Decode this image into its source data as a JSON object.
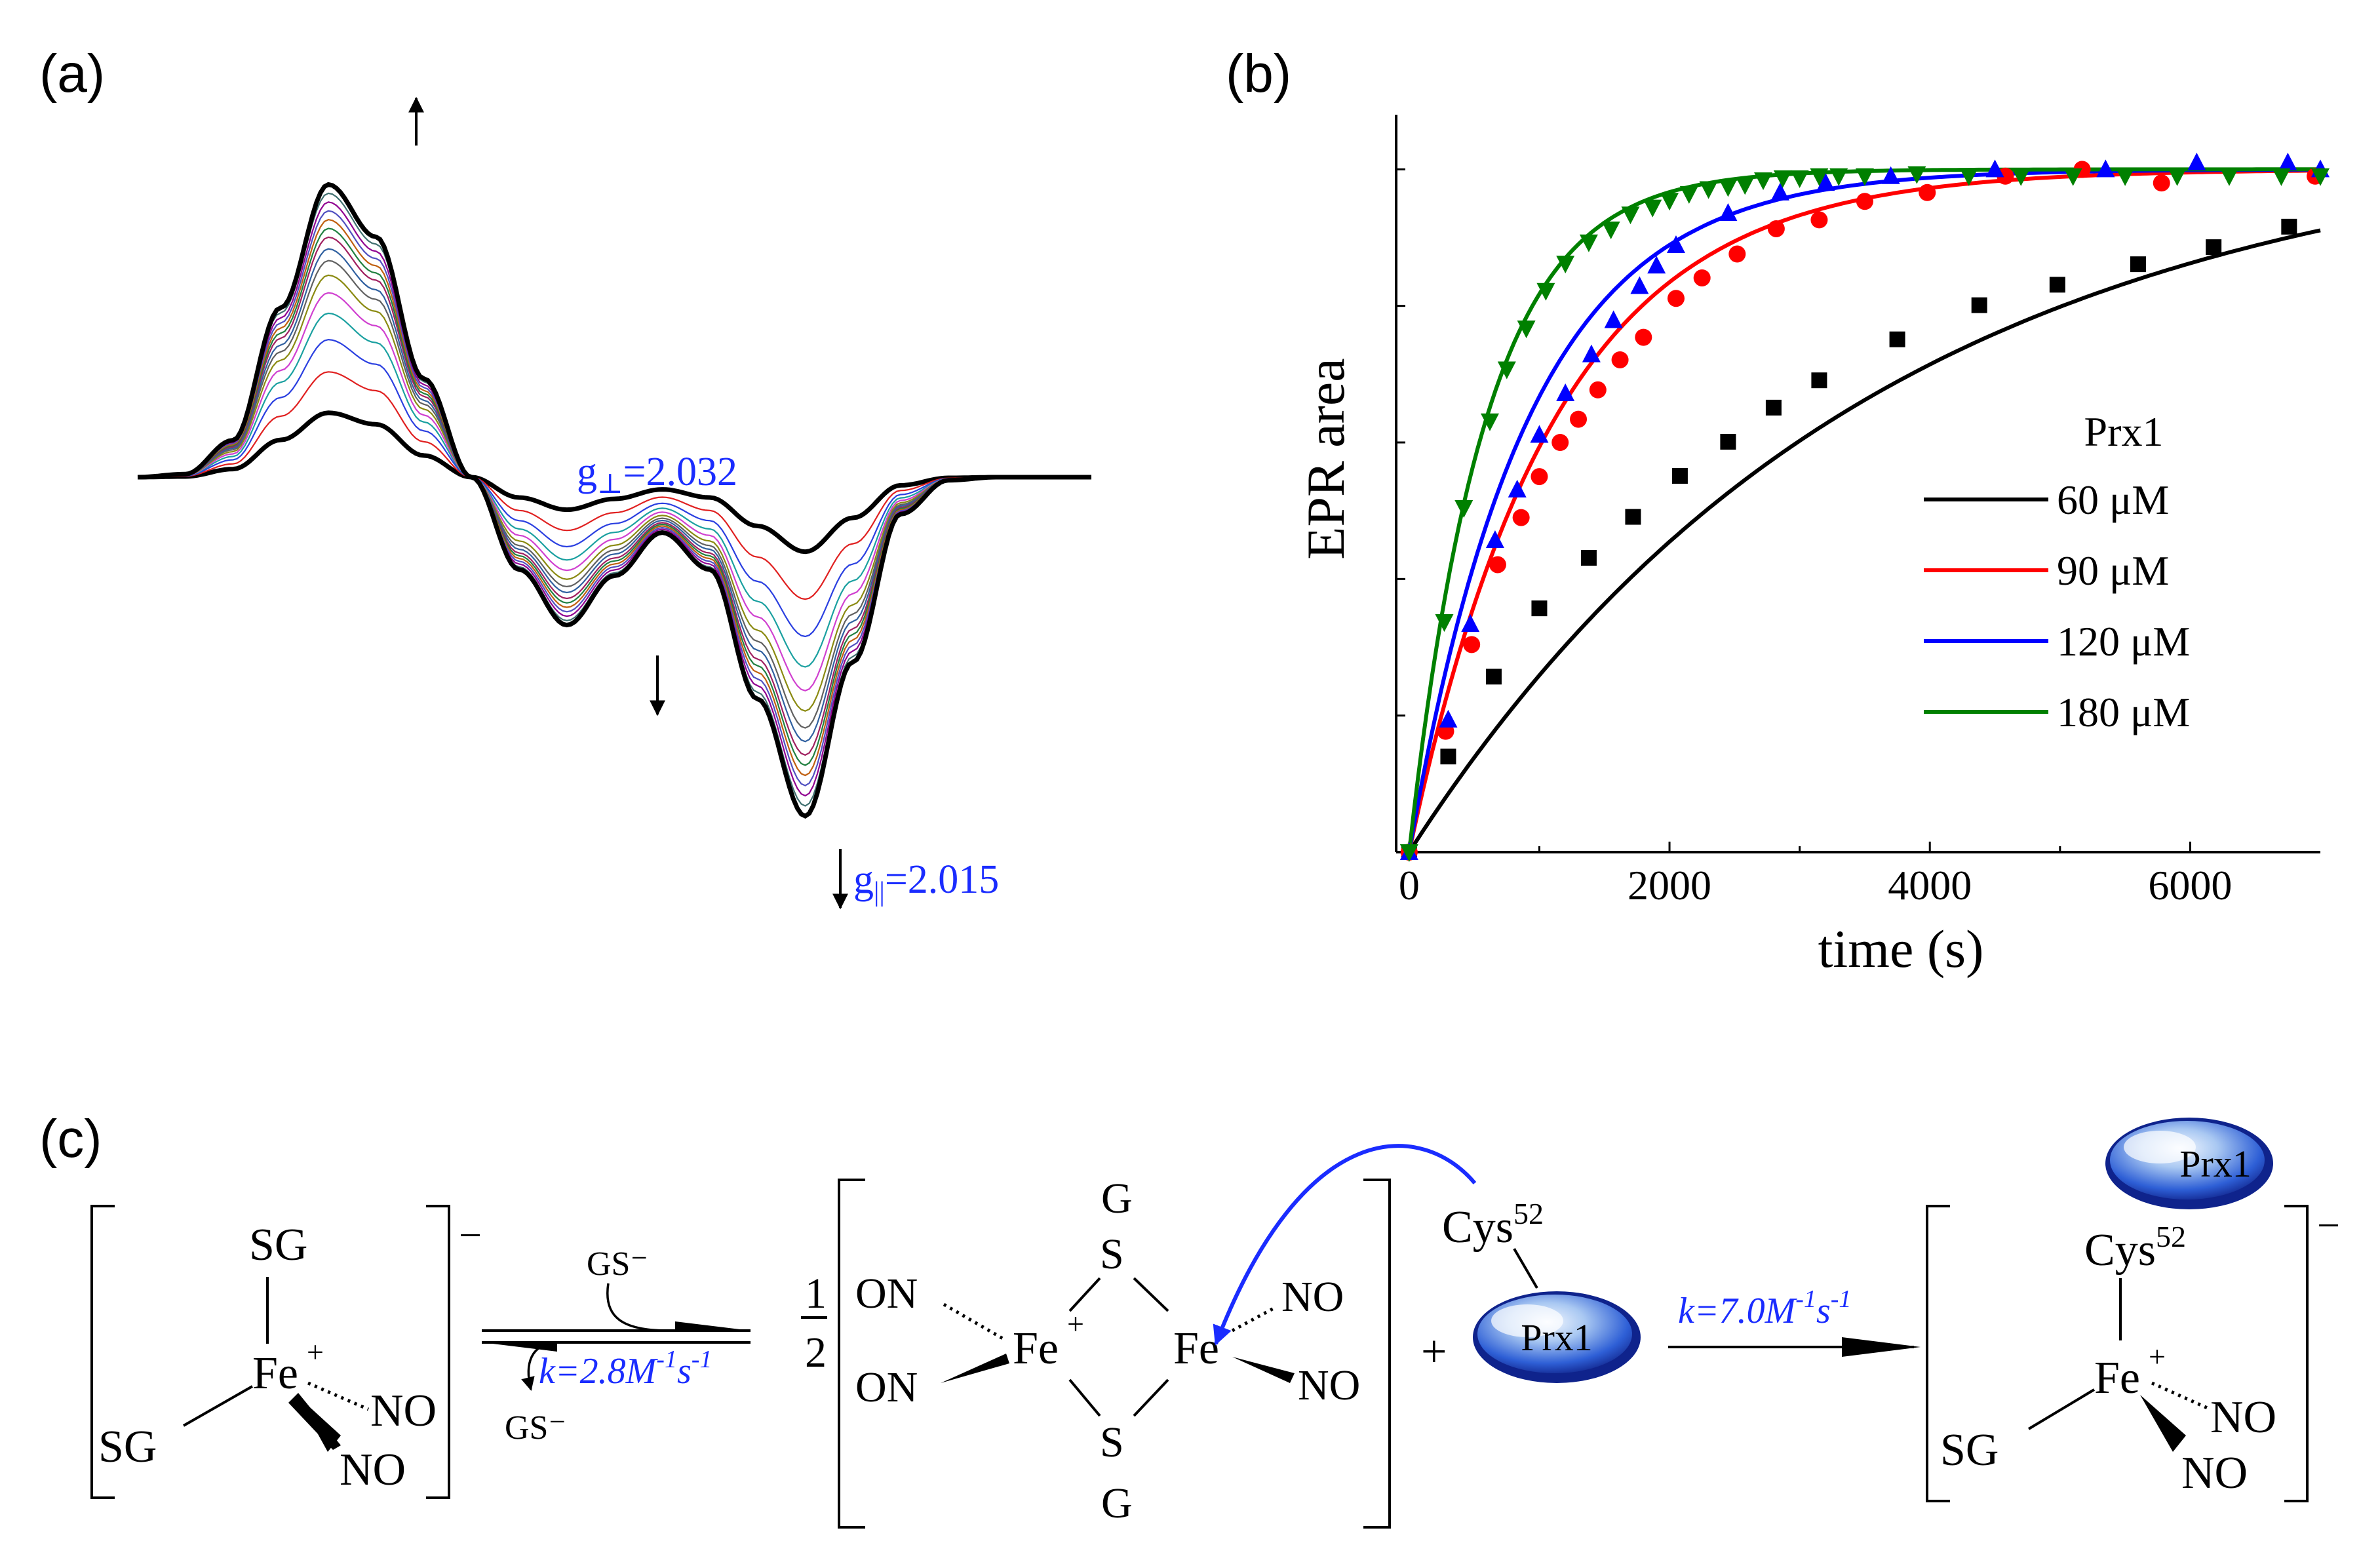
{
  "panels": {
    "a": {
      "label": "(a)",
      "g_perp": {
        "sym": "g",
        "sub": "⊥",
        "value": "=2.032"
      },
      "g_par": {
        "sym": "g",
        "sub": "||",
        "value": "=2.015"
      }
    },
    "b": {
      "label": "(b)"
    },
    "c": {
      "label": "(c)"
    }
  },
  "scheme": {
    "species1": {
      "sg_top": "SG",
      "sg_left": "SG",
      "fe": "Fe",
      "charge_plus": "+",
      "no_upper": "NO",
      "no_lower": "NO",
      "charge": "−"
    },
    "reagent_in": "GS⁻",
    "reagent_out": "GS⁻",
    "k1": {
      "prefix": "k=2.8M",
      "exp1": "-1",
      "mid": "s",
      "exp2": "-1"
    },
    "half": {
      "num": "1",
      "den": "2"
    },
    "dimer": {
      "g_top": "G",
      "s_top": "S",
      "s_bottom": "S",
      "g_bottom": "G",
      "on_upper": "ON",
      "on_lower": "ON",
      "fe_left": "Fe",
      "fe_right": "Fe",
      "plus": "+",
      "no_upper": "NO",
      "no_lower": "NO"
    },
    "plus_sign": "+",
    "cys": {
      "name": "Cys",
      "sup": "52"
    },
    "prx1": "Prx1",
    "k2": {
      "prefix": "k=7.0M",
      "exp1": "-1",
      "mid": "s",
      "exp2": "-1"
    },
    "product": {
      "prx1": "Prx1",
      "cys": "Cys",
      "cys_sup": "52",
      "fe": "Fe",
      "plus": "+",
      "sg": "SG",
      "no_upper": "NO",
      "no_lower": "NO",
      "charge": "−"
    }
  },
  "chart_data": [
    {
      "panel": "a",
      "type": "line",
      "title": "",
      "xlabel": "",
      "ylabel": "",
      "description_units": "EPR derivative spectra (arbitrary units)",
      "x": [
        0,
        0.05,
        0.1,
        0.15,
        0.2,
        0.25,
        0.3,
        0.35,
        0.4,
        0.45,
        0.5,
        0.55,
        0.6,
        0.65,
        0.7,
        0.75,
        0.8,
        0.85,
        0.9,
        0.95,
        1.0
      ],
      "final_spectrum": [
        0.0,
        0.01,
        0.12,
        0.55,
        0.95,
        0.78,
        0.32,
        0.0,
        -0.3,
        -0.48,
        -0.32,
        -0.18,
        -0.3,
        -0.72,
        -1.1,
        -0.6,
        -0.12,
        -0.01,
        0.0,
        0.0,
        0.0
      ],
      "series_count": 15,
      "curve_scales": [
        0.22,
        0.36,
        0.47,
        0.56,
        0.63,
        0.69,
        0.74,
        0.78,
        0.82,
        0.85,
        0.88,
        0.91,
        0.94,
        0.97,
        1.0
      ],
      "colors": [
        "#000000",
        "#e02020",
        "#2a3fe0",
        "#1aa0a0",
        "#d040d0",
        "#8a8a10",
        "#606060",
        "#3060a0",
        "#a02060",
        "#208040",
        "#c06010",
        "#5050c0",
        "#900090",
        "#407070",
        "#000000"
      ],
      "annotations": [
        "g⊥=2.032",
        "g||=2.015"
      ],
      "arrows": [
        "up at first maximum",
        "down at first minimum",
        "down at second minimum"
      ]
    },
    {
      "panel": "b",
      "type": "scatter",
      "title": "",
      "xlabel": "time (s)",
      "ylabel": "EPR area",
      "xlim": [
        -100,
        7000
      ],
      "ylim": [
        0,
        1.08
      ],
      "xticks": [
        0,
        2000,
        4000,
        6000
      ],
      "legend": {
        "title": "Prx1",
        "position": "right-middle",
        "entries": [
          "60 μM",
          "90 μM",
          "120 μM",
          "180 μM"
        ]
      },
      "series": [
        {
          "name": "60 μM",
          "color": "#000000",
          "marker": "square",
          "fit": {
            "A": 1.06,
            "k": 0.00028
          },
          "x": [
            0,
            300,
            650,
            1000,
            1380,
            1720,
            2080,
            2450,
            2800,
            3150,
            3750,
            4380,
            4980,
            5600,
            6180,
            6760
          ],
          "y": [
            0,
            0.14,
            0.257,
            0.357,
            0.431,
            0.491,
            0.551,
            0.601,
            0.651,
            0.691,
            0.751,
            0.801,
            0.831,
            0.861,
            0.886,
            0.916
          ]
        },
        {
          "name": "90 μM",
          "color": "#ff0000",
          "marker": "circle",
          "fit": {
            "A": 1.0,
            "k": 0.0009
          },
          "x": [
            0,
            280,
            480,
            680,
            860,
            1000,
            1160,
            1300,
            1450,
            1620,
            1800,
            2050,
            2250,
            2520,
            2820,
            3150,
            3500,
            3980,
            4580,
            5170,
            5780,
            6960
          ],
          "y": [
            0,
            0.177,
            0.304,
            0.421,
            0.49,
            0.55,
            0.6,
            0.634,
            0.677,
            0.721,
            0.754,
            0.811,
            0.841,
            0.876,
            0.913,
            0.926,
            0.953,
            0.966,
            0.99,
            1.0,
            0.98,
            0.99
          ]
        },
        {
          "name": "120 μM",
          "color": "#0000ff",
          "marker": "triangle-up",
          "fit": {
            "A": 1.0,
            "k": 0.0011
          },
          "x": [
            0,
            300,
            470,
            660,
            830,
            1000,
            1200,
            1400,
            1570,
            1770,
            1900,
            2050,
            2450,
            2850,
            3200,
            3700,
            4500,
            5350,
            6050,
            6750,
            7000
          ],
          "y": [
            0,
            0.194,
            0.334,
            0.457,
            0.531,
            0.611,
            0.672,
            0.729,
            0.779,
            0.829,
            0.859,
            0.889,
            0.936,
            0.966,
            0.98,
            0.99,
            1.0,
            1.0,
            1.01,
            1.01,
            1.0
          ]
        },
        {
          "name": "180 μM",
          "color": "#008000",
          "marker": "triangle-down",
          "fit": {
            "A": 1.0,
            "k": 0.0017
          },
          "x": [
            0,
            270,
            420,
            620,
            750,
            900,
            1050,
            1200,
            1380,
            1550,
            1700,
            1870,
            2000,
            2150,
            2300,
            2450,
            2580,
            2720,
            2870,
            3000,
            3150,
            3300,
            3500,
            3900,
            4300,
            4700,
            5100,
            5500,
            5900,
            6300,
            6700,
            7000
          ],
          "y": [
            0,
            0.337,
            0.504,
            0.631,
            0.707,
            0.767,
            0.822,
            0.862,
            0.893,
            0.912,
            0.934,
            0.944,
            0.954,
            0.964,
            0.971,
            0.974,
            0.977,
            0.984,
            0.987,
            0.987,
            0.99,
            0.99,
            0.99,
            0.993,
            0.99,
            0.99,
            0.99,
            0.99,
            0.99,
            0.99,
            0.99,
            0.99
          ]
        }
      ]
    }
  ]
}
